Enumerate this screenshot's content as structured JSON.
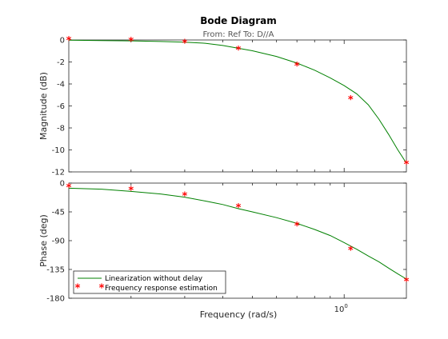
{
  "chart_data": {
    "type": "line",
    "title": "Bode Diagram",
    "subtitle": "From: Ref  To: D//A",
    "xlabel": "Frequency  (rad/s)",
    "x_scale": "log",
    "xlim": [
      0.125,
      1.6
    ],
    "x_tick_labels": [
      {
        "value": 1.0,
        "base": "10",
        "exponent": "0"
      }
    ],
    "legend": {
      "placement": "bottom-left",
      "entries": [
        {
          "name": "Linearization without delay",
          "color": "#008000",
          "style": "line"
        },
        {
          "name": "Frequency response estimation",
          "color": "#ff0000",
          "style": "marker"
        }
      ]
    },
    "panels": [
      {
        "id": "magnitude",
        "ylabel": "Magnitude (dB)",
        "ylim": [
          -12,
          0
        ],
        "yticks": [
          0,
          -2,
          -4,
          -6,
          -8,
          -10,
          -12
        ],
        "series": [
          {
            "name": "Linearization without delay",
            "x": [
              0.125,
              0.16,
              0.2,
              0.25,
              0.3,
              0.35,
              0.4,
              0.5,
              0.6,
              0.7,
              0.8,
              0.9,
              1.0,
              1.1,
              1.2,
              1.3,
              1.4,
              1.5,
              1.6
            ],
            "y": [
              -0.02,
              -0.05,
              -0.08,
              -0.14,
              -0.2,
              -0.3,
              -0.5,
              -0.98,
              -1.5,
              -2.1,
              -2.75,
              -3.45,
              -4.15,
              -4.9,
              -5.9,
              -7.2,
              -8.6,
              -10.0,
              -11.2
            ]
          },
          {
            "name": "Frequency response estimation",
            "x": [
              0.125,
              0.2,
              0.3,
              0.45,
              0.7,
              1.05,
              1.6
            ],
            "y": [
              -0.03,
              -0.1,
              -0.3,
              -0.9,
              -2.35,
              -5.4,
              -11.3
            ]
          }
        ]
      },
      {
        "id": "phase",
        "ylabel": "Phase (deg)",
        "ylim": [
          -180,
          0
        ],
        "yticks": [
          0,
          -45,
          -90,
          -135,
          -180
        ],
        "series": [
          {
            "name": "Linearization without delay",
            "x": [
              0.125,
              0.16,
              0.2,
              0.25,
              0.3,
              0.35,
              0.4,
              0.45,
              0.5,
              0.6,
              0.7,
              0.8,
              0.9,
              1.0,
              1.1,
              1.2,
              1.3,
              1.4,
              1.5,
              1.6
            ],
            "y": [
              -8,
              -9.5,
              -13,
              -17,
              -22,
              -28,
              -33.5,
              -40,
              -45,
              -54,
              -63,
              -72.5,
              -82,
              -93,
              -103.5,
              -114,
              -123,
              -133,
              -142,
              -150
            ]
          },
          {
            "name": "Frequency response estimation",
            "x": [
              0.125,
              0.2,
              0.3,
              0.45,
              0.7,
              1.05,
              1.6
            ],
            "y": [
              -7,
              -11,
              -20,
              -38,
              -67,
              -105,
              -154
            ]
          }
        ]
      }
    ]
  }
}
